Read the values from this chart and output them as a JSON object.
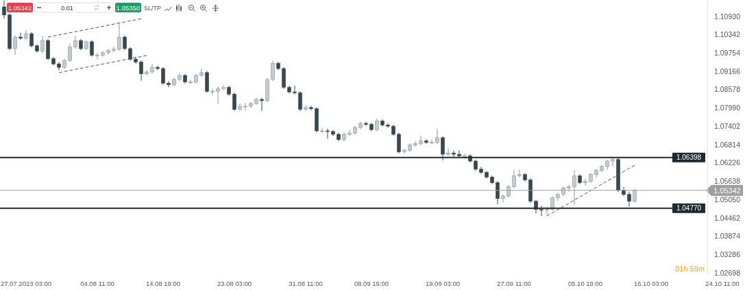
{
  "chart_data": {
    "type": "candlestick",
    "categories": [
      null,
      null,
      null,
      null,
      "27.07.2023 03:00",
      null,
      null,
      null,
      null,
      null,
      null,
      null,
      null,
      null,
      null,
      null,
      null,
      "04.08 11:00",
      null,
      null,
      null,
      null,
      null,
      null,
      null,
      null,
      null,
      null,
      null,
      "14.08 19:00",
      null,
      null,
      null,
      null,
      null,
      null,
      null,
      null,
      null,
      null,
      null,
      null,
      "23.08 03:00",
      null,
      null,
      null,
      null,
      null,
      null,
      null,
      null,
      null,
      null,
      null,
      null,
      "31.08 11:00",
      null,
      null,
      null,
      null,
      null,
      null,
      null,
      null,
      null,
      null,
      null,
      "08.09 19:00",
      null,
      null,
      null,
      null,
      null,
      null,
      null,
      null,
      null,
      null,
      null,
      null,
      "19.09 03:00",
      null,
      null,
      null,
      null,
      null,
      null,
      null,
      null,
      null,
      null,
      null,
      null,
      "27.09 11:00",
      null,
      null,
      null,
      null,
      null,
      null,
      null,
      null,
      null,
      null,
      null,
      null,
      "05.10 19:00",
      null,
      null,
      null,
      null,
      null,
      null,
      null,
      null,
      null,
      null,
      null,
      "16.10 03:00",
      null,
      null,
      null,
      null,
      null,
      null,
      null,
      null,
      null,
      null,
      null,
      null,
      "24.10 11:00",
      null,
      null,
      null,
      null
    ],
    "ohlc": [
      [
        1.1123,
        1.1144,
        1.1085,
        1.1097
      ],
      [
        1.1097,
        1.1102,
        1.0984,
        1.0989
      ],
      [
        1.0989,
        1.1031,
        1.097,
        1.1026
      ],
      [
        1.1026,
        1.104,
        1.1017,
        1.1022
      ],
      [
        1.1022,
        1.1048,
        1.1017,
        1.1037
      ],
      [
        1.1037,
        1.1042,
        1.0993,
        1.0998
      ],
      [
        1.0998,
        1.1003,
        1.0976,
        1.0981
      ],
      [
        1.0981,
        1.103,
        1.0976,
        1.1015
      ],
      [
        1.1015,
        1.102,
        1.0952,
        1.0957
      ],
      [
        1.0957,
        1.0962,
        1.0935,
        1.094
      ],
      [
        1.094,
        1.0946,
        1.092,
        1.0929
      ],
      [
        1.0929,
        1.0956,
        1.0924,
        1.0951
      ],
      [
        1.0951,
        1.1005,
        1.0946,
        1.0994
      ],
      [
        1.0994,
        1.103,
        1.0989,
        1.1015
      ],
      [
        1.1015,
        1.102,
        1.0984,
        1.0989
      ],
      [
        1.0989,
        1.1016,
        1.0984,
        1.1011
      ],
      [
        1.1011,
        1.1016,
        1.0963,
        1.0968
      ],
      [
        1.0968,
        1.0975,
        1.0955,
        1.0968
      ],
      [
        1.0968,
        1.0981,
        1.0963,
        1.0976
      ],
      [
        1.0976,
        1.0988,
        1.0971,
        1.0983
      ],
      [
        1.0983,
        1.0995,
        1.0978,
        1.0987
      ],
      [
        1.0987,
        1.1069,
        1.0982,
        1.1026
      ],
      [
        1.1026,
        1.1031,
        1.0984,
        1.0989
      ],
      [
        1.0989,
        1.0994,
        1.095,
        1.0955
      ],
      [
        1.0955,
        1.0962,
        1.0941,
        1.0946
      ],
      [
        1.0946,
        1.0951,
        1.0886,
        1.0908
      ],
      [
        1.0908,
        1.0919,
        1.0903,
        1.0914
      ],
      [
        1.0914,
        1.094,
        1.0909,
        1.0929
      ],
      [
        1.0929,
        1.0934,
        1.092,
        1.0925
      ],
      [
        1.0925,
        1.093,
        1.0873,
        1.0878
      ],
      [
        1.0878,
        1.0885,
        1.0865,
        1.0873
      ],
      [
        1.0873,
        1.0895,
        1.0868,
        1.089
      ],
      [
        1.089,
        1.091,
        1.0885,
        1.0903
      ],
      [
        1.0903,
        1.0908,
        1.0877,
        1.0882
      ],
      [
        1.0882,
        1.089,
        1.0875,
        1.0882
      ],
      [
        1.0882,
        1.0908,
        1.0877,
        1.0903
      ],
      [
        1.0903,
        1.0925,
        1.0898,
        1.0912
      ],
      [
        1.0912,
        1.0917,
        1.0847,
        1.0852
      ],
      [
        1.0852,
        1.086,
        1.084,
        1.0852
      ],
      [
        1.0852,
        1.0868,
        1.0811,
        1.086
      ],
      [
        1.086,
        1.0872,
        1.0855,
        1.0865
      ],
      [
        1.0865,
        1.087,
        1.0838,
        1.0843
      ],
      [
        1.0843,
        1.0848,
        1.0789,
        1.0794
      ],
      [
        1.0794,
        1.0812,
        1.0789,
        1.0804
      ],
      [
        1.0804,
        1.0815,
        1.079,
        1.0804
      ],
      [
        1.0804,
        1.0818,
        1.0799,
        1.0813
      ],
      [
        1.0813,
        1.0831,
        1.0808,
        1.0826
      ],
      [
        1.0826,
        1.0831,
        1.0789,
        1.0822
      ],
      [
        1.0822,
        1.0895,
        1.0817,
        1.089
      ],
      [
        1.089,
        1.0951,
        1.0885,
        1.0942
      ],
      [
        1.0942,
        1.0947,
        1.092,
        1.0925
      ],
      [
        1.0925,
        1.093,
        1.086,
        1.0865
      ],
      [
        1.0865,
        1.087,
        1.0845,
        1.085
      ],
      [
        1.085,
        1.087,
        1.0842,
        1.0847
      ],
      [
        1.0847,
        1.0852,
        1.0789,
        1.0794
      ],
      [
        1.0794,
        1.0808,
        1.0789,
        1.08
      ],
      [
        1.08,
        1.0805,
        1.0791,
        1.0796
      ],
      [
        1.0796,
        1.0801,
        1.072,
        1.0725
      ],
      [
        1.0725,
        1.0735,
        1.0718,
        1.0725
      ],
      [
        1.0725,
        1.0732,
        1.07,
        1.0723
      ],
      [
        1.0723,
        1.0728,
        1.0709,
        1.0714
      ],
      [
        1.0714,
        1.0719,
        1.0692,
        1.0697
      ],
      [
        1.0697,
        1.072,
        1.0692,
        1.0714
      ],
      [
        1.0714,
        1.0728,
        1.0709,
        1.0718
      ],
      [
        1.0718,
        1.0741,
        1.0713,
        1.0736
      ],
      [
        1.0736,
        1.0754,
        1.0731,
        1.0749
      ],
      [
        1.0749,
        1.0754,
        1.0741,
        1.0746
      ],
      [
        1.0746,
        1.0751,
        1.0724,
        1.0729
      ],
      [
        1.0729,
        1.0765,
        1.0724,
        1.0757
      ],
      [
        1.0757,
        1.0762,
        1.0739,
        1.0744
      ],
      [
        1.0744,
        1.075,
        1.0735,
        1.074
      ],
      [
        1.074,
        1.0745,
        1.0709,
        1.0714
      ],
      [
        1.0714,
        1.0719,
        1.0653,
        1.0658
      ],
      [
        1.0658,
        1.0668,
        1.0653,
        1.0663
      ],
      [
        1.0663,
        1.0685,
        1.0658,
        1.068
      ],
      [
        1.068,
        1.0692,
        1.0675,
        1.0684
      ],
      [
        1.0684,
        1.071,
        1.0679,
        1.0693
      ],
      [
        1.0693,
        1.0698,
        1.0683,
        1.0688
      ],
      [
        1.0688,
        1.0696,
        1.0683,
        1.0688
      ],
      [
        1.0688,
        1.0732,
        1.0683,
        1.0703
      ],
      [
        1.0703,
        1.0708,
        1.063,
        1.065
      ],
      [
        1.065,
        1.0668,
        1.0645,
        1.0654
      ],
      [
        1.0654,
        1.0662,
        1.064,
        1.065
      ],
      [
        1.065,
        1.0662,
        1.064,
        1.0645
      ],
      [
        1.0645,
        1.0652,
        1.0635,
        1.0645
      ],
      [
        1.0645,
        1.065,
        1.0623,
        1.0628
      ],
      [
        1.0628,
        1.0633,
        1.0597,
        1.0602
      ],
      [
        1.0602,
        1.061,
        1.0587,
        1.0592
      ],
      [
        1.0592,
        1.0597,
        1.0572,
        1.0577
      ],
      [
        1.0577,
        1.0582,
        1.0554,
        1.0559
      ],
      [
        1.0559,
        1.0564,
        1.049,
        1.0508
      ],
      [
        1.0508,
        1.0521,
        1.0495,
        1.0516
      ],
      [
        1.0516,
        1.0551,
        1.0511,
        1.0546
      ],
      [
        1.0546,
        1.06,
        1.0541,
        1.0581
      ],
      [
        1.0581,
        1.06,
        1.0576,
        1.0585
      ],
      [
        1.0585,
        1.059,
        1.0563,
        1.0568
      ],
      [
        1.0568,
        1.0573,
        1.0494,
        1.0499
      ],
      [
        1.0499,
        1.0504,
        1.046,
        1.0473
      ],
      [
        1.0473,
        1.0485,
        1.0452,
        1.0471
      ],
      [
        1.0471,
        1.048,
        1.0455,
        1.0473
      ],
      [
        1.0473,
        1.0515,
        1.0468,
        1.051
      ],
      [
        1.051,
        1.0526,
        1.05,
        1.0521
      ],
      [
        1.0521,
        1.0547,
        1.0516,
        1.0542
      ],
      [
        1.0542,
        1.0551,
        1.053,
        1.0546
      ],
      [
        1.0546,
        1.06,
        1.0489,
        1.0581
      ],
      [
        1.0581,
        1.0586,
        1.0554,
        1.0559
      ],
      [
        1.0559,
        1.057,
        1.055,
        1.0563
      ],
      [
        1.0563,
        1.059,
        1.0558,
        1.0585
      ],
      [
        1.0585,
        1.0603,
        1.0575,
        1.0598
      ],
      [
        1.0598,
        1.0616,
        1.0593,
        1.0611
      ],
      [
        1.0611,
        1.0633,
        1.06,
        1.0628
      ],
      [
        1.0628,
        1.0643,
        1.061,
        1.0633
      ],
      [
        1.0633,
        1.064,
        1.0529,
        1.0534
      ],
      [
        1.0534,
        1.0545,
        1.0516,
        1.0521
      ],
      [
        1.0521,
        1.053,
        1.0482,
        1.0499
      ],
      [
        1.0499,
        1.0539,
        1.0494,
        1.0534
      ],
      null,
      null,
      null,
      null,
      null,
      null,
      null,
      null,
      null,
      null,
      null,
      null,
      null,
      null,
      null,
      null,
      null,
      null,
      null,
      null
    ],
    "series": [
      {
        "type": "line",
        "color": "#555555",
        "line_style": "dashed",
        "values": [
          null,
          null,
          null,
          null,
          null,
          null,
          null,
          null,
          1.1026,
          null,
          null,
          null,
          null,
          null,
          null,
          null,
          null,
          null,
          null,
          null,
          null,
          null,
          null,
          null,
          null,
          1.1085,
          null,
          null,
          null,
          null,
          null,
          null,
          null,
          null,
          null,
          null,
          null,
          null,
          null,
          null,
          null,
          null,
          null,
          null,
          null,
          null,
          null,
          null,
          null,
          null,
          null,
          null,
          null,
          null,
          null,
          null,
          null,
          null,
          null,
          null,
          null,
          null,
          null,
          null,
          null,
          null,
          null,
          null,
          null,
          null,
          null,
          null,
          null,
          null,
          null,
          null,
          null,
          null,
          null,
          null,
          null,
          null,
          null,
          null,
          null,
          null,
          null,
          null,
          null,
          null,
          null,
          null,
          null,
          null,
          null,
          null,
          null,
          null,
          null,
          null,
          null,
          null,
          null,
          null,
          null,
          null,
          null,
          null,
          null,
          null,
          null,
          null,
          null,
          null,
          null,
          null,
          null,
          null,
          null,
          null,
          null,
          null,
          null,
          null,
          null,
          null,
          null,
          null,
          null,
          null,
          null,
          null,
          null,
          null,
          null,
          null
        ]
      },
      {
        "type": "line",
        "color": "#555555",
        "line_style": "dashed",
        "values": [
          null,
          null,
          null,
          null,
          null,
          null,
          null,
          null,
          null,
          null,
          1.0912,
          null,
          null,
          null,
          null,
          null,
          null,
          null,
          null,
          null,
          null,
          null,
          null,
          null,
          null,
          null,
          1.0967,
          null,
          null,
          null,
          null,
          null,
          null,
          null,
          null,
          null,
          null,
          null,
          null,
          null,
          null,
          null,
          null,
          null,
          null,
          null,
          null,
          null,
          null,
          null,
          null,
          null,
          null,
          null,
          null,
          null,
          null,
          null,
          null,
          null,
          null,
          null,
          null,
          null,
          null,
          null,
          null,
          null,
          null,
          null,
          null,
          null,
          null,
          null,
          null,
          null,
          null,
          null,
          null,
          null,
          null,
          null,
          null,
          null,
          null,
          null,
          null,
          null,
          null,
          null,
          null,
          null,
          null,
          null,
          null,
          null,
          null,
          null,
          null,
          null,
          null,
          null,
          null,
          null,
          null,
          null,
          null,
          null,
          null,
          null,
          null,
          null,
          null,
          null,
          null,
          null,
          null,
          null,
          null,
          null,
          null,
          null,
          null,
          null,
          null,
          null,
          null,
          null,
          null,
          null,
          null,
          null,
          null,
          null,
          null,
          null
        ]
      },
      {
        "type": "line",
        "color": "#555555",
        "line_style": "dashed",
        "values": [
          null,
          null,
          null,
          null,
          null,
          null,
          null,
          null,
          null,
          null,
          null,
          null,
          null,
          null,
          null,
          null,
          null,
          null,
          null,
          null,
          null,
          null,
          null,
          null,
          null,
          null,
          null,
          null,
          null,
          null,
          null,
          null,
          null,
          null,
          null,
          null,
          null,
          null,
          null,
          null,
          null,
          null,
          null,
          null,
          null,
          null,
          null,
          null,
          null,
          null,
          null,
          null,
          null,
          null,
          null,
          null,
          null,
          null,
          null,
          null,
          null,
          null,
          null,
          null,
          null,
          null,
          null,
          null,
          null,
          null,
          null,
          null,
          null,
          null,
          null,
          null,
          null,
          null,
          null,
          null,
          null,
          null,
          null,
          null,
          null,
          null,
          null,
          null,
          null,
          null,
          null,
          null,
          null,
          null,
          null,
          null,
          null,
          null,
          null,
          1.0452,
          null,
          null,
          null,
          null,
          null,
          null,
          null,
          null,
          null,
          null,
          null,
          null,
          null,
          null,
          null,
          1.0615,
          null,
          null,
          null,
          null,
          null,
          null,
          null,
          null,
          null,
          null,
          null,
          null,
          null,
          null,
          null,
          null,
          null,
          null,
          null,
          null
        ]
      }
    ],
    "ylim": [
      1.0265,
      1.1145
    ],
    "yticks": [
      {
        "value": 1.1093,
        "label": "1.10930"
      },
      1.10342,
      1.09754,
      1.09166,
      1.08578,
      {
        "value": 1.0799,
        "label": "1.07990"
      },
      1.07402,
      1.06814,
      1.06226,
      1.05638,
      {
        "value": 1.0505,
        "label": "1.05050"
      },
      1.04462,
      1.03874,
      1.03286,
      1.02698
    ],
    "ref_lines": [
      {
        "axis": "y",
        "value": 1.06398,
        "label": "1.06398",
        "color": "#1c2a31"
      },
      {
        "axis": "y",
        "value": 1.0477,
        "label": "1.04770",
        "color": "#1c2a31"
      },
      {
        "axis": "y",
        "value": 1.05342,
        "label": "1.05342",
        "color": "#9e9e9e"
      }
    ],
    "annotations": [
      "1.05342",
      "0.01",
      "1.05350",
      "SL/TP",
      "01h 59m"
    ]
  }
}
